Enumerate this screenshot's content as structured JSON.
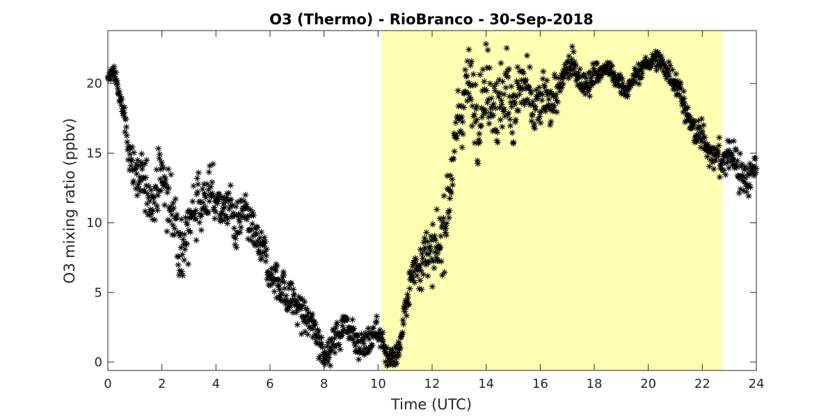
{
  "chart_data": {
    "type": "scatter",
    "title": "O3 (Thermo) - RioBranco - 30-Sep-2018",
    "xlabel": "Time (UTC)",
    "ylabel": "O3 mixing ratio (ppbv)",
    "xlim": [
      0,
      24
    ],
    "ylim": [
      -0.6,
      23.8
    ],
    "xticks": [
      0,
      2,
      4,
      6,
      8,
      10,
      12,
      14,
      16,
      18,
      20,
      22,
      24
    ],
    "yticks": [
      0,
      5,
      10,
      15,
      20
    ],
    "marker": "asterisk",
    "marker_color": "#000000",
    "highlight_band": {
      "x_start": 10.15,
      "x_end": 22.75,
      "color": "#ffffb3"
    },
    "grid": false,
    "trend": [
      [
        0.0,
        20.2
      ],
      [
        0.15,
        20.8
      ],
      [
        0.3,
        20.5
      ],
      [
        0.45,
        18.8
      ],
      [
        0.6,
        17.8
      ],
      [
        0.75,
        15.2
      ],
      [
        1.0,
        14.0
      ],
      [
        1.25,
        12.8
      ],
      [
        1.5,
        11.5
      ],
      [
        1.75,
        12.6
      ],
      [
        2.0,
        13.5
      ],
      [
        2.25,
        11.5
      ],
      [
        2.5,
        10.0
      ],
      [
        2.75,
        8.6
      ],
      [
        3.0,
        9.5
      ],
      [
        3.25,
        12.0
      ],
      [
        3.5,
        11.6
      ],
      [
        3.75,
        12.2
      ],
      [
        4.0,
        11.5
      ],
      [
        4.25,
        11.0
      ],
      [
        4.5,
        11.3
      ],
      [
        4.75,
        9.5
      ],
      [
        5.0,
        10.2
      ],
      [
        5.25,
        9.5
      ],
      [
        5.5,
        8.5
      ],
      [
        5.75,
        7.5
      ],
      [
        6.0,
        6.5
      ],
      [
        6.25,
        6.0
      ],
      [
        6.5,
        5.3
      ],
      [
        6.75,
        4.6
      ],
      [
        7.0,
        4.0
      ],
      [
        7.25,
        3.3
      ],
      [
        7.5,
        2.6
      ],
      [
        7.75,
        1.9
      ],
      [
        8.0,
        1.0
      ],
      [
        8.25,
        0.9
      ],
      [
        8.5,
        2.0
      ],
      [
        8.75,
        2.7
      ],
      [
        9.0,
        3.0
      ],
      [
        9.25,
        1.5
      ],
      [
        9.5,
        1.0
      ],
      [
        9.75,
        1.8
      ],
      [
        10.0,
        2.4
      ],
      [
        10.25,
        0.6
      ],
      [
        10.5,
        0.4
      ],
      [
        10.75,
        0.8
      ],
      [
        11.0,
        3.6
      ],
      [
        11.25,
        6.2
      ],
      [
        11.5,
        7.3
      ],
      [
        11.75,
        8.3
      ],
      [
        12.0,
        7.0
      ],
      [
        12.25,
        7.3
      ],
      [
        12.5,
        10.8
      ],
      [
        12.75,
        14.5
      ],
      [
        13.0,
        17.0
      ],
      [
        13.25,
        20.3
      ],
      [
        13.5,
        18.7
      ],
      [
        13.75,
        19.2
      ],
      [
        14.0,
        20.2
      ],
      [
        14.25,
        19.8
      ],
      [
        14.5,
        18.5
      ],
      [
        14.75,
        19.3
      ],
      [
        15.0,
        18.4
      ],
      [
        15.25,
        19.8
      ],
      [
        15.5,
        19.4
      ],
      [
        15.75,
        17.2
      ],
      [
        16.0,
        18.2
      ],
      [
        16.25,
        18.8
      ],
      [
        16.5,
        19.0
      ],
      [
        16.75,
        19.4
      ],
      [
        17.0,
        21.0
      ],
      [
        17.25,
        21.3
      ],
      [
        17.5,
        20.4
      ],
      [
        17.75,
        20.1
      ],
      [
        18.0,
        20.6
      ],
      [
        18.25,
        20.8
      ],
      [
        18.5,
        21.1
      ],
      [
        18.75,
        20.2
      ],
      [
        19.0,
        20.0
      ],
      [
        19.25,
        19.7
      ],
      [
        19.5,
        20.3
      ],
      [
        19.75,
        21.0
      ],
      [
        20.0,
        21.6
      ],
      [
        20.25,
        21.7
      ],
      [
        20.5,
        21.3
      ],
      [
        20.75,
        21.0
      ],
      [
        21.0,
        20.3
      ],
      [
        21.25,
        19.4
      ],
      [
        21.5,
        17.0
      ],
      [
        21.75,
        16.4
      ],
      [
        22.0,
        16.0
      ],
      [
        22.25,
        15.5
      ],
      [
        22.5,
        15.0
      ],
      [
        22.75,
        14.0
      ],
      [
        23.0,
        15.0
      ],
      [
        23.25,
        14.5
      ],
      [
        23.5,
        13.2
      ],
      [
        23.75,
        13.5
      ],
      [
        24.0,
        14.4
      ]
    ],
    "spread": [
      [
        0.0,
        0.5
      ],
      [
        0.5,
        0.6
      ],
      [
        1.0,
        1.4
      ],
      [
        2.0,
        1.8
      ],
      [
        3.0,
        2.0
      ],
      [
        4.0,
        1.5
      ],
      [
        5.0,
        1.4
      ],
      [
        6.0,
        1.2
      ],
      [
        7.0,
        1.1
      ],
      [
        8.0,
        1.0
      ],
      [
        9.0,
        1.1
      ],
      [
        10.0,
        1.0
      ],
      [
        10.5,
        0.6
      ],
      [
        11.0,
        0.9
      ],
      [
        12.0,
        1.8
      ],
      [
        13.0,
        2.2
      ],
      [
        14.0,
        2.5
      ],
      [
        15.0,
        2.3
      ],
      [
        16.0,
        1.6
      ],
      [
        17.0,
        1.0
      ],
      [
        18.0,
        0.7
      ],
      [
        19.0,
        0.6
      ],
      [
        20.0,
        0.6
      ],
      [
        21.0,
        0.8
      ],
      [
        22.0,
        0.9
      ],
      [
        23.0,
        1.2
      ],
      [
        24.0,
        1.0
      ]
    ],
    "sample_interval_hours": 0.0167
  }
}
